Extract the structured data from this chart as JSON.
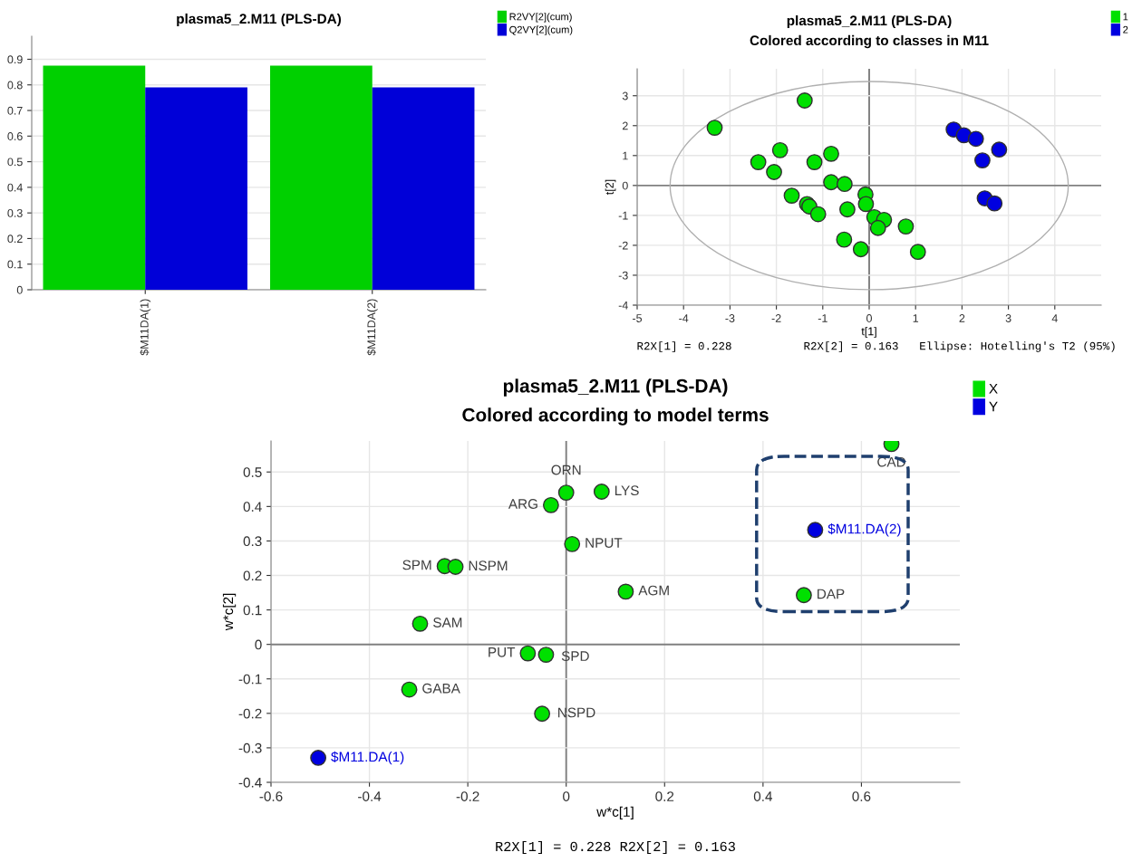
{
  "chart_data": [
    {
      "type": "bar",
      "title": "plasma5_2.M11 (PLS-DA)",
      "categories": [
        "$M11DA(1)",
        "$M11DA(2)"
      ],
      "series": [
        {
          "name": "R2VY[2](cum)",
          "color": "#00d000",
          "values": [
            0.875,
            0.875
          ]
        },
        {
          "name": "Q2VY[2](cum)",
          "color": "#0000d8",
          "values": [
            0.79,
            0.79
          ]
        }
      ],
      "ylim": [
        0,
        0.99
      ],
      "yticks": [
        0,
        0.1,
        0.2,
        0.3,
        0.4,
        0.5,
        0.6,
        0.7,
        0.8,
        0.9
      ],
      "grid": "y",
      "legend": "top right"
    },
    {
      "type": "scatter",
      "title": "plasma5_2.M11 (PLS-DA)",
      "subtitle": "Colored according to classes in M11",
      "xlabel": "t[1]",
      "ylabel": "t[2]",
      "series": [
        {
          "name": "1",
          "color": "#00e000",
          "x": [
            -3.33,
            -1.39,
            -1.92,
            -2.39,
            -2.05,
            -1.18,
            -0.82,
            -0.82,
            -0.53,
            -1.67,
            -1.34,
            -1.29,
            -1.1,
            -0.47,
            -0.08,
            -0.07,
            0.11,
            0.32,
            0.19,
            0.79,
            -0.54,
            -0.18,
            1.05
          ],
          "values": [
            1.93,
            2.84,
            1.18,
            0.78,
            0.45,
            0.78,
            1.06,
            0.11,
            0.05,
            -0.34,
            -0.62,
            -0.7,
            -0.96,
            -0.8,
            -0.3,
            -0.62,
            -1.06,
            -1.15,
            -1.42,
            -1.37,
            -1.81,
            -2.13,
            -2.22
          ]
        },
        {
          "name": "2",
          "color": "#0000e0",
          "x": [
            1.82,
            2.04,
            2.3,
            2.8,
            2.44,
            2.49,
            2.7
          ],
          "values": [
            1.87,
            1.68,
            1.56,
            1.2,
            0.84,
            -0.43,
            -0.6
          ]
        }
      ],
      "xlim": [
        -5,
        5
      ],
      "xticks": [
        -5,
        -4,
        -3,
        -2,
        -1,
        0,
        1,
        2,
        3,
        4
      ],
      "ylim": [
        -4,
        3.9
      ],
      "yticks": [
        -4,
        -3,
        -2,
        -1,
        0,
        1,
        2,
        3
      ],
      "grid": true,
      "legend": "top right",
      "marker": "circle",
      "annotations": [
        "R2X[1] = 0.228",
        "R2X[2] = 0.163",
        "Ellipse: Hotelling's T2 (95%)"
      ]
    },
    {
      "type": "scatter",
      "title": "plasma5_2.M11 (PLS-DA)",
      "subtitle": "Colored according to model terms",
      "xlabel": "w*c[1]",
      "ylabel": "w*c[2]",
      "series": [
        {
          "name": "X",
          "color": "#00e000",
          "x": [
            0.0,
            0.072,
            -0.031,
            0.012,
            -0.247,
            -0.225,
            0.121,
            -0.297,
            -0.078,
            -0.041,
            -0.319,
            -0.049,
            0.661,
            0.483
          ],
          "values": [
            0.44,
            0.443,
            0.404,
            0.291,
            0.227,
            0.225,
            0.153,
            0.06,
            -0.026,
            -0.03,
            -0.131,
            -0.201,
            0.581,
            0.143
          ]
        },
        {
          "name": "Y",
          "color": "#0000e0",
          "x": [
            0.506,
            -0.504
          ],
          "values": [
            0.332,
            -0.329
          ]
        }
      ],
      "xlim": [
        -0.6,
        0.8
      ],
      "xticks": [
        -0.6,
        -0.4,
        -0.2,
        0,
        0.2,
        0.4,
        0.6
      ],
      "ylim": [
        -0.4,
        0.59
      ],
      "yticks": [
        -0.4,
        -0.3,
        -0.2,
        -0.1,
        0,
        0.1,
        0.2,
        0.3,
        0.4,
        0.5
      ],
      "grid": true,
      "legend": "top right",
      "marker": "circle",
      "annotations": [
        {
          "text": "ORN",
          "x": 0.0,
          "y": 0.44
        },
        {
          "text": "LYS",
          "x": 0.072,
          "y": 0.443
        },
        {
          "text": "ARG",
          "x": -0.031,
          "y": 0.404
        },
        {
          "text": "NPUT",
          "x": 0.012,
          "y": 0.291
        },
        {
          "text": "SPM",
          "x": -0.247,
          "y": 0.227
        },
        {
          "text": "NSPM",
          "x": -0.225,
          "y": 0.225
        },
        {
          "text": "AGM",
          "x": 0.121,
          "y": 0.153
        },
        {
          "text": "SAM",
          "x": -0.297,
          "y": 0.06
        },
        {
          "text": "PUT",
          "x": -0.078,
          "y": -0.026
        },
        {
          "text": "SPD",
          "x": -0.041,
          "y": -0.03
        },
        {
          "text": "GABA",
          "x": -0.319,
          "y": -0.131
        },
        {
          "text": "NSPD",
          "x": -0.049,
          "y": -0.201
        },
        {
          "text": "CAD",
          "x": 0.661,
          "y": 0.581
        },
        {
          "text": "DAP",
          "x": 0.483,
          "y": 0.143
        },
        {
          "text": "$M11.DA(2)",
          "x": 0.506,
          "y": 0.332
        },
        {
          "text": "$M11.DA(1)",
          "x": -0.504,
          "y": -0.329
        },
        "R2X[1] = 0.228 R2X[2] = 0.163"
      ]
    }
  ]
}
